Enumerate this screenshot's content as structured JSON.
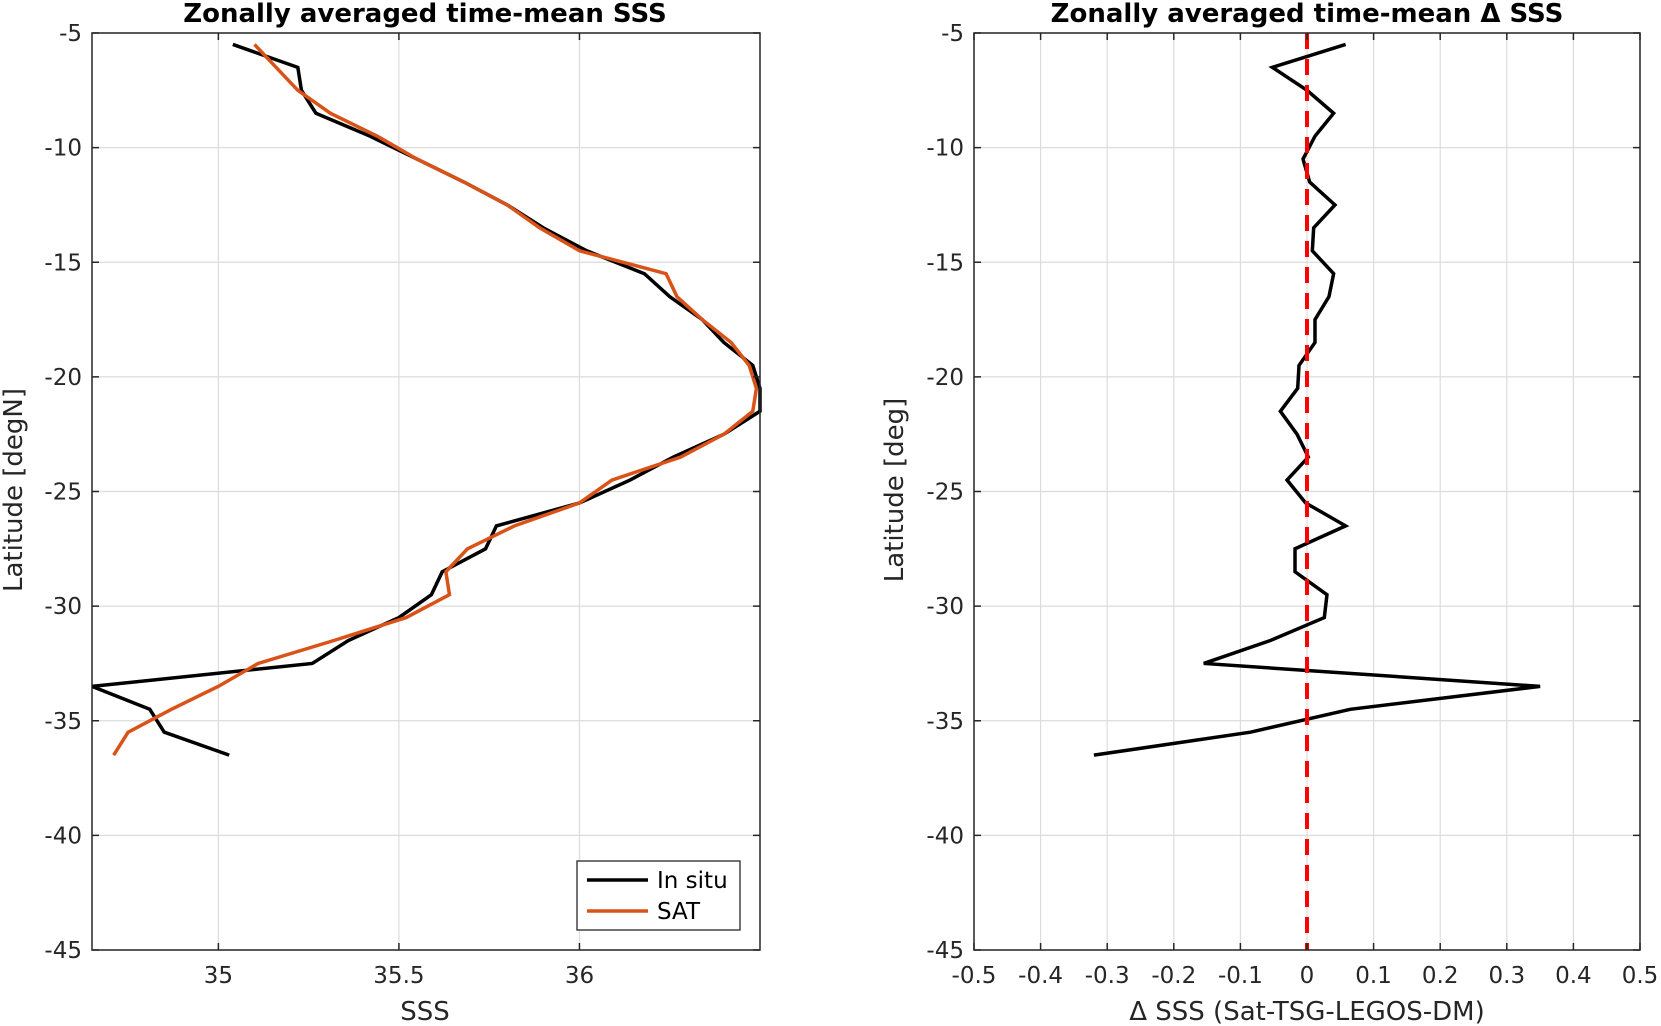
{
  "chart_data": [
    {
      "type": "line",
      "title": "Zonally averaged time-mean SSS",
      "xlabel": "SSS",
      "ylabel": "Latitude [degN]",
      "xlim": [
        34.65,
        36.5
      ],
      "ylim": [
        -45,
        -5
      ],
      "xticks": [
        35,
        35.5,
        36
      ],
      "xtick_labels": [
        "35",
        "35.5",
        "36"
      ],
      "yticks": [
        -45,
        -40,
        -35,
        -30,
        -25,
        -20,
        -15,
        -10,
        -5
      ],
      "ytick_labels": [
        "-45",
        "-40",
        "-35",
        "-30",
        "-25",
        "-20",
        "-15",
        "-10",
        "-5"
      ],
      "grid": true,
      "legend_position": "bottom-right",
      "series": [
        {
          "name": "In situ",
          "color": "#000000",
          "lat": [
            -5.5,
            -6.5,
            -7.5,
            -8.5,
            -9.5,
            -10.5,
            -11.5,
            -12.5,
            -13.5,
            -14.5,
            -15.5,
            -16.5,
            -17.5,
            -18.5,
            -19.5,
            -20.5,
            -21.5,
            -22.5,
            -23.5,
            -24.5,
            -25.5,
            -26.5,
            -27.5,
            -28.5,
            -29.5,
            -30.5,
            -31.5,
            -32.5,
            -33.5,
            -34.5,
            -35.5,
            -36.5
          ],
          "sss": [
            35.04,
            35.22,
            35.23,
            35.27,
            35.42,
            35.55,
            35.68,
            35.8,
            35.9,
            36.02,
            36.18,
            36.25,
            36.34,
            36.4,
            36.48,
            36.5,
            36.5,
            36.4,
            36.26,
            36.14,
            36.0,
            35.77,
            35.74,
            35.62,
            35.59,
            35.5,
            35.36,
            35.26,
            34.65,
            34.81,
            34.85,
            35.03
          ]
        },
        {
          "name": "SAT",
          "color": "#D95319",
          "lat": [
            -5.5,
            -6.5,
            -7.5,
            -8.5,
            -9.5,
            -10.5,
            -11.5,
            -12.5,
            -13.5,
            -14.5,
            -15.5,
            -16.5,
            -17.5,
            -18.5,
            -19.5,
            -20.5,
            -21.5,
            -22.5,
            -23.5,
            -24.5,
            -25.5,
            -26.5,
            -27.5,
            -28.5,
            -29.5,
            -30.5,
            -31.5,
            -32.5,
            -33.5,
            -34.5,
            -35.5,
            -36.5
          ],
          "sss": [
            35.1,
            35.16,
            35.22,
            35.31,
            35.44,
            35.55,
            35.68,
            35.8,
            35.89,
            36.0,
            36.24,
            36.27,
            36.34,
            36.42,
            36.47,
            36.49,
            36.48,
            36.4,
            36.28,
            36.09,
            36.0,
            35.82,
            35.69,
            35.63,
            35.64,
            35.52,
            35.32,
            35.11,
            35.0,
            34.87,
            34.75,
            34.71
          ]
        }
      ]
    },
    {
      "type": "line",
      "title": "Zonally averaged time-mean Δ SSS",
      "xlabel": "Δ SSS (Sat-TSG-LEGOS-DM)",
      "ylabel": "Latitude [deg]",
      "xlim": [
        -0.5,
        0.5
      ],
      "ylim": [
        -45,
        -5
      ],
      "xticks": [
        -0.5,
        -0.4,
        -0.3,
        -0.2,
        -0.1,
        0,
        0.1,
        0.2,
        0.3,
        0.4,
        0.5
      ],
      "xtick_labels": [
        "-0.5",
        "-0.4",
        "-0.3",
        "-0.2",
        "-0.1",
        "0",
        "0.1",
        "0.2",
        "0.3",
        "0.4",
        "0.5"
      ],
      "yticks": [
        -45,
        -40,
        -35,
        -30,
        -25,
        -20,
        -15,
        -10,
        -5
      ],
      "ytick_labels": [
        "-45",
        "-40",
        "-35",
        "-30",
        "-25",
        "-20",
        "-15",
        "-10",
        "-5"
      ],
      "grid": true,
      "series": [
        {
          "color": "#000000",
          "lat": [
            -5.5,
            -6.5,
            -7.5,
            -8.5,
            -9.5,
            -10.5,
            -11.5,
            -12.5,
            -13.5,
            -14.5,
            -15.5,
            -16.5,
            -17.5,
            -18.5,
            -19.5,
            -20.5,
            -21.5,
            -22.5,
            -23.5,
            -24.5,
            -25.5,
            -26.5,
            -27.5,
            -28.5,
            -29.5,
            -30.5,
            -31.5,
            -32.5,
            -33.5,
            -34.5,
            -35.5,
            -36.5
          ],
          "dsss": [
            0.058,
            -0.052,
            0.0,
            0.04,
            0.012,
            -0.006,
            0.004,
            0.042,
            0.01,
            0.008,
            0.04,
            0.033,
            0.012,
            0.012,
            -0.012,
            -0.014,
            -0.04,
            -0.015,
            0.002,
            -0.03,
            -0.002,
            0.058,
            -0.018,
            -0.018,
            0.03,
            0.026,
            -0.055,
            -0.155,
            0.35,
            0.065,
            -0.085,
            -0.32
          ]
        },
        {
          "style": "dashed",
          "color": "#FF0000",
          "lat": [
            -5,
            -45
          ],
          "dsss": [
            0,
            0
          ]
        }
      ]
    }
  ]
}
